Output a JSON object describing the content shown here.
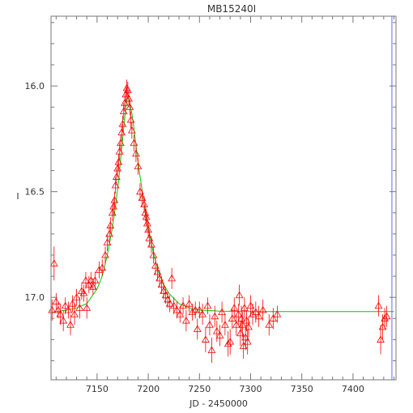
{
  "chart_data": {
    "type": "scatter",
    "title": "MB15240I",
    "xlabel": "JD - 2450000",
    "ylabel": "I",
    "xlim": [
      7105,
      7442
    ],
    "ylim": [
      17.39,
      15.67
    ],
    "y_inverted": true,
    "x_ticks": [
      7150,
      7200,
      7250,
      7300,
      7350,
      7400
    ],
    "y_ticks": [
      16.0,
      16.5,
      17.0
    ],
    "y_tick_labels": [
      "16.0",
      "16.5",
      "17.0"
    ],
    "vertical_marker_jd": 7438,
    "colors": {
      "points": "#ff0000",
      "model": "#00cc00",
      "axes": "#777777",
      "marker": "#6666ff"
    },
    "marker_style": "open-triangle-with-errorbar",
    "series": [
      {
        "kind": "observations",
        "points": [
          {
            "x": 7106,
            "y": 17.06,
            "err": 0.05
          },
          {
            "x": 7108,
            "y": 16.84,
            "err": 0.08
          },
          {
            "x": 7110,
            "y": 17.02,
            "err": 0.04
          },
          {
            "x": 7112,
            "y": 17.06,
            "err": 0.04
          },
          {
            "x": 7114,
            "y": 17.08,
            "err": 0.05
          },
          {
            "x": 7117,
            "y": 17.11,
            "err": 0.05
          },
          {
            "x": 7119,
            "y": 17.04,
            "err": 0.04
          },
          {
            "x": 7122,
            "y": 17.06,
            "err": 0.04
          },
          {
            "x": 7124,
            "y": 17.13,
            "err": 0.05
          },
          {
            "x": 7126,
            "y": 17.03,
            "err": 0.04
          },
          {
            "x": 7128,
            "y": 17.08,
            "err": 0.05
          },
          {
            "x": 7130,
            "y": 17.0,
            "err": 0.04
          },
          {
            "x": 7133,
            "y": 17.05,
            "err": 0.05
          },
          {
            "x": 7135,
            "y": 16.97,
            "err": 0.04
          },
          {
            "x": 7137,
            "y": 16.98,
            "err": 0.04
          },
          {
            "x": 7139,
            "y": 16.92,
            "err": 0.04
          },
          {
            "x": 7140,
            "y": 17.05,
            "err": 0.05
          },
          {
            "x": 7142,
            "y": 16.94,
            "err": 0.04
          },
          {
            "x": 7144,
            "y": 16.92,
            "err": 0.04
          },
          {
            "x": 7146,
            "y": 16.95,
            "err": 0.04
          },
          {
            "x": 7148,
            "y": 16.92,
            "err": 0.04
          },
          {
            "x": 7152,
            "y": 16.87,
            "err": 0.04
          },
          {
            "x": 7155,
            "y": 16.86,
            "err": 0.04
          },
          {
            "x": 7158,
            "y": 16.8,
            "err": 0.04
          },
          {
            "x": 7160,
            "y": 16.74,
            "err": 0.04
          },
          {
            "x": 7162,
            "y": 16.7,
            "err": 0.04
          },
          {
            "x": 7163,
            "y": 16.66,
            "err": 0.04
          },
          {
            "x": 7165,
            "y": 16.6,
            "err": 0.04
          },
          {
            "x": 7166,
            "y": 16.57,
            "err": 0.04
          },
          {
            "x": 7167,
            "y": 16.54,
            "err": 0.04
          },
          {
            "x": 7168,
            "y": 16.47,
            "err": 0.04
          },
          {
            "x": 7169,
            "y": 16.43,
            "err": 0.04
          },
          {
            "x": 7170,
            "y": 16.39,
            "err": 0.04
          },
          {
            "x": 7171,
            "y": 16.36,
            "err": 0.04
          },
          {
            "x": 7172,
            "y": 16.31,
            "err": 0.04
          },
          {
            "x": 7173,
            "y": 16.27,
            "err": 0.04
          },
          {
            "x": 7174,
            "y": 16.22,
            "err": 0.04
          },
          {
            "x": 7175,
            "y": 16.18,
            "err": 0.04
          },
          {
            "x": 7176,
            "y": 16.12,
            "err": 0.04
          },
          {
            "x": 7177,
            "y": 16.08,
            "err": 0.04
          },
          {
            "x": 7178,
            "y": 16.04,
            "err": 0.04
          },
          {
            "x": 7179,
            "y": 16.01,
            "err": 0.04
          },
          {
            "x": 7180,
            "y": 16.02,
            "err": 0.04
          },
          {
            "x": 7181,
            "y": 16.06,
            "err": 0.04
          },
          {
            "x": 7182,
            "y": 16.1,
            "err": 0.04
          },
          {
            "x": 7183,
            "y": 16.16,
            "err": 0.04
          },
          {
            "x": 7184,
            "y": 16.21,
            "err": 0.04
          },
          {
            "x": 7186,
            "y": 16.27,
            "err": 0.04
          },
          {
            "x": 7188,
            "y": 16.32,
            "err": 0.04
          },
          {
            "x": 7190,
            "y": 16.38,
            "err": 0.04
          },
          {
            "x": 7192,
            "y": 16.5,
            "err": 0.04
          },
          {
            "x": 7194,
            "y": 16.53,
            "err": 0.04
          },
          {
            "x": 7196,
            "y": 16.56,
            "err": 0.04
          },
          {
            "x": 7197,
            "y": 16.6,
            "err": 0.04
          },
          {
            "x": 7198,
            "y": 16.62,
            "err": 0.04
          },
          {
            "x": 7199,
            "y": 16.65,
            "err": 0.04
          },
          {
            "x": 7200,
            "y": 16.68,
            "err": 0.04
          },
          {
            "x": 7201,
            "y": 16.72,
            "err": 0.04
          },
          {
            "x": 7203,
            "y": 16.75,
            "err": 0.04
          },
          {
            "x": 7205,
            "y": 16.8,
            "err": 0.04
          },
          {
            "x": 7207,
            "y": 16.85,
            "err": 0.04
          },
          {
            "x": 7209,
            "y": 16.88,
            "err": 0.04
          },
          {
            "x": 7211,
            "y": 16.91,
            "err": 0.04
          },
          {
            "x": 7213,
            "y": 16.94,
            "err": 0.04
          },
          {
            "x": 7215,
            "y": 16.97,
            "err": 0.04
          },
          {
            "x": 7217,
            "y": 16.99,
            "err": 0.04
          },
          {
            "x": 7219,
            "y": 17.01,
            "err": 0.04
          },
          {
            "x": 7221,
            "y": 17.03,
            "err": 0.04
          },
          {
            "x": 7223,
            "y": 16.91,
            "err": 0.05
          },
          {
            "x": 7225,
            "y": 17.04,
            "err": 0.04
          },
          {
            "x": 7228,
            "y": 17.06,
            "err": 0.04
          },
          {
            "x": 7231,
            "y": 17.08,
            "err": 0.04
          },
          {
            "x": 7234,
            "y": 17.04,
            "err": 0.04
          },
          {
            "x": 7237,
            "y": 17.11,
            "err": 0.05
          },
          {
            "x": 7240,
            "y": 17.03,
            "err": 0.04
          },
          {
            "x": 7243,
            "y": 17.07,
            "err": 0.04
          },
          {
            "x": 7246,
            "y": 17.06,
            "err": 0.04
          },
          {
            "x": 7248,
            "y": 17.15,
            "err": 0.05
          },
          {
            "x": 7250,
            "y": 17.06,
            "err": 0.04
          },
          {
            "x": 7253,
            "y": 17.08,
            "err": 0.05
          },
          {
            "x": 7256,
            "y": 17.2,
            "err": 0.06
          },
          {
            "x": 7258,
            "y": 17.04,
            "err": 0.04
          },
          {
            "x": 7260,
            "y": 17.13,
            "err": 0.05
          },
          {
            "x": 7262,
            "y": 17.25,
            "err": 0.06
          },
          {
            "x": 7265,
            "y": 17.09,
            "err": 0.05
          },
          {
            "x": 7267,
            "y": 17.16,
            "err": 0.05
          },
          {
            "x": 7270,
            "y": 17.18,
            "err": 0.05
          },
          {
            "x": 7272,
            "y": 17.07,
            "err": 0.05
          },
          {
            "x": 7275,
            "y": 17.13,
            "err": 0.05
          },
          {
            "x": 7278,
            "y": 17.22,
            "err": 0.06
          },
          {
            "x": 7280,
            "y": 17.21,
            "err": 0.06
          },
          {
            "x": 7282,
            "y": 17.1,
            "err": 0.05
          },
          {
            "x": 7284,
            "y": 17.05,
            "err": 0.05
          },
          {
            "x": 7286,
            "y": 17.13,
            "err": 0.05
          },
          {
            "x": 7288,
            "y": 17.08,
            "err": 0.05
          },
          {
            "x": 7289,
            "y": 16.99,
            "err": 0.05
          },
          {
            "x": 7290,
            "y": 17.17,
            "err": 0.06
          },
          {
            "x": 7291,
            "y": 17.1,
            "err": 0.06
          },
          {
            "x": 7292,
            "y": 17.13,
            "err": 0.06
          },
          {
            "x": 7293,
            "y": 17.23,
            "err": 0.06
          },
          {
            "x": 7294,
            "y": 17.05,
            "err": 0.05
          },
          {
            "x": 7295,
            "y": 17.19,
            "err": 0.06
          },
          {
            "x": 7296,
            "y": 17.11,
            "err": 0.05
          },
          {
            "x": 7297,
            "y": 17.21,
            "err": 0.06
          },
          {
            "x": 7298,
            "y": 17.14,
            "err": 0.05
          },
          {
            "x": 7300,
            "y": 17.04,
            "err": 0.05
          },
          {
            "x": 7302,
            "y": 17.08,
            "err": 0.05
          },
          {
            "x": 7305,
            "y": 17.07,
            "err": 0.05
          },
          {
            "x": 7308,
            "y": 17.09,
            "err": 0.05
          },
          {
            "x": 7312,
            "y": 17.06,
            "err": 0.05
          },
          {
            "x": 7318,
            "y": 17.13,
            "err": 0.05
          },
          {
            "x": 7322,
            "y": 17.1,
            "err": 0.05
          },
          {
            "x": 7326,
            "y": 17.08,
            "err": 0.04
          },
          {
            "x": 7425,
            "y": 17.04,
            "err": 0.05
          },
          {
            "x": 7427,
            "y": 17.2,
            "err": 0.07
          },
          {
            "x": 7429,
            "y": 17.14,
            "err": 0.06
          },
          {
            "x": 7431,
            "y": 17.1,
            "err": 0.05
          },
          {
            "x": 7433,
            "y": 17.09,
            "err": 0.05
          }
        ]
      },
      {
        "kind": "model",
        "x": [
          7106,
          7120,
          7130,
          7140,
          7150,
          7155,
          7160,
          7165,
          7168,
          7171,
          7174,
          7176,
          7178,
          7180,
          7182,
          7184,
          7186,
          7188,
          7190,
          7193,
          7196,
          7200,
          7205,
          7210,
          7215,
          7220,
          7230,
          7240,
          7250,
          7270,
          7300,
          7350,
          7400,
          7440
        ],
        "y": [
          17.07,
          17.06,
          17.05,
          17.03,
          16.96,
          16.9,
          16.8,
          16.67,
          16.57,
          16.45,
          16.3,
          16.2,
          16.1,
          16.05,
          16.08,
          16.13,
          16.2,
          16.28,
          16.36,
          16.46,
          16.56,
          16.67,
          16.79,
          16.88,
          16.94,
          16.98,
          17.03,
          17.05,
          17.06,
          17.065,
          17.067,
          17.067,
          17.067,
          17.067
        ]
      }
    ]
  }
}
